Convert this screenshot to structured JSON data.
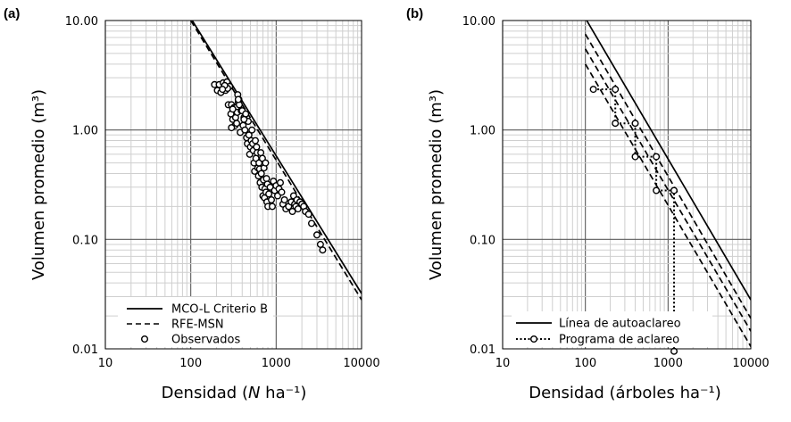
{
  "chart_data": [
    {
      "type": "scatter",
      "panel_label": "(a)",
      "title": "",
      "xlabel_prefix": "Densidad (",
      "xlabel_var": "N",
      "xlabel_suffix": " ha⁻¹)",
      "ylabel": "Volumen promedio (m³)",
      "xscale": "log",
      "yscale": "log",
      "xlim": [
        10,
        10000
      ],
      "ylim": [
        0.01,
        10
      ],
      "x_ticks": [
        "10",
        "100",
        "1000",
        "10000"
      ],
      "y_ticks": [
        "0.01",
        "0.10",
        "1.00",
        "10.00"
      ],
      "grid": true,
      "legend_position": "bottom-left",
      "series": [
        {
          "name": "MCO-L Criterio B",
          "style": "solid",
          "x": [
            100,
            10000
          ],
          "y": [
            10.5,
            0.032
          ]
        },
        {
          "name": "RFE-MSN",
          "style": "dashed",
          "x": [
            100,
            10000
          ],
          "y": [
            10.0,
            0.028
          ]
        },
        {
          "name": "Observados",
          "style": "markers",
          "x": [
            190,
            205,
            215,
            225,
            240,
            255,
            265,
            275,
            285,
            295,
            300,
            310,
            320,
            330,
            335,
            340,
            345,
            350,
            355,
            360,
            365,
            370,
            380,
            390,
            400,
            410,
            420,
            430,
            440,
            450,
            460,
            470,
            480,
            490,
            500,
            510,
            520,
            530,
            540,
            550,
            560,
            570,
            580,
            590,
            600,
            610,
            620,
            630,
            640,
            650,
            660,
            670,
            680,
            690,
            700,
            710,
            720,
            730,
            740,
            750,
            760,
            770,
            780,
            790,
            800,
            820,
            850,
            880,
            900,
            930,
            960,
            1000,
            1040,
            1080,
            1120,
            1160,
            1200,
            1250,
            1300,
            1400,
            1500,
            1550,
            1600,
            1650,
            1700,
            1750,
            1800,
            1900,
            2000,
            2100,
            2200,
            2400,
            2600,
            3000,
            3300,
            3500,
            270,
            310,
            360,
            420,
            300,
            250,
            235
          ],
          "y": [
            2.6,
            2.3,
            2.6,
            2.2,
            2.7,
            2.3,
            2.75,
            1.7,
            2.5,
            1.4,
            1.7,
            1.25,
            1.6,
            1.1,
            1.3,
            1.6,
            1.15,
            1.45,
            2.1,
            1.8,
            1.9,
            1.7,
            0.95,
            1.5,
            1.5,
            1.1,
            1.3,
            1.0,
            1.4,
            0.85,
            0.75,
            1.2,
            0.9,
            0.6,
            0.7,
            0.8,
            1.0,
            0.75,
            0.65,
            0.5,
            0.42,
            0.8,
            0.55,
            0.7,
            0.62,
            0.45,
            0.38,
            0.5,
            0.44,
            0.33,
            0.62,
            0.4,
            0.3,
            0.55,
            0.25,
            0.35,
            0.45,
            0.24,
            0.29,
            0.5,
            0.27,
            0.36,
            0.22,
            0.32,
            0.2,
            0.26,
            0.3,
            0.23,
            0.2,
            0.34,
            0.28,
            0.31,
            0.25,
            0.29,
            0.33,
            0.27,
            0.21,
            0.23,
            0.19,
            0.2,
            0.22,
            0.18,
            0.25,
            0.21,
            0.2,
            0.23,
            0.19,
            0.22,
            0.21,
            0.2,
            0.18,
            0.17,
            0.14,
            0.11,
            0.09,
            0.08,
            2.4,
            1.55,
            1.9,
            1.25,
            1.05,
            2.55,
            2.35
          ]
        }
      ]
    },
    {
      "type": "line",
      "panel_label": "(b)",
      "title": "",
      "xlabel": "Densidad (árboles ha⁻¹)",
      "ylabel": "Volumen promedio (m³)",
      "xscale": "log",
      "yscale": "log",
      "xlim": [
        10,
        10000
      ],
      "ylim": [
        0.01,
        10
      ],
      "x_ticks": [
        "10",
        "100",
        "1000",
        "10000"
      ],
      "y_ticks": [
        "0.01",
        "0.10",
        "1.00",
        "10.00"
      ],
      "grid": true,
      "legend_position": "bottom-left",
      "series": [
        {
          "name": "Línea de autoaclareo",
          "style": "solid",
          "x": [
            100,
            10000
          ],
          "y": [
            10.5,
            0.028
          ]
        },
        {
          "name": "",
          "style": "dashed",
          "x": [
            100,
            10000
          ],
          "y": [
            7.5,
            0.019
          ]
        },
        {
          "name": "",
          "style": "dashed",
          "x": [
            100,
            10000
          ],
          "y": [
            5.5,
            0.0145
          ]
        },
        {
          "name": "",
          "style": "dashed",
          "x": [
            100,
            10000
          ],
          "y": [
            4.0,
            0.0105
          ]
        },
        {
          "name": "Programa de aclareo",
          "style": "dotted-markers",
          "x": [
            125,
            230,
            230,
            400,
            400,
            720,
            720,
            1180,
            1180,
            1180
          ],
          "y": [
            2.35,
            2.35,
            1.15,
            1.15,
            0.57,
            0.57,
            0.28,
            0.28,
            0.0095,
            0.0095
          ]
        },
        {
          "name": "",
          "style": "markers",
          "x": [
            125,
            230,
            230,
            400,
            400,
            720,
            720,
            1180,
            1180
          ],
          "y": [
            2.35,
            2.35,
            1.15,
            1.15,
            0.57,
            0.57,
            0.28,
            0.28,
            0.0095
          ]
        }
      ]
    }
  ]
}
